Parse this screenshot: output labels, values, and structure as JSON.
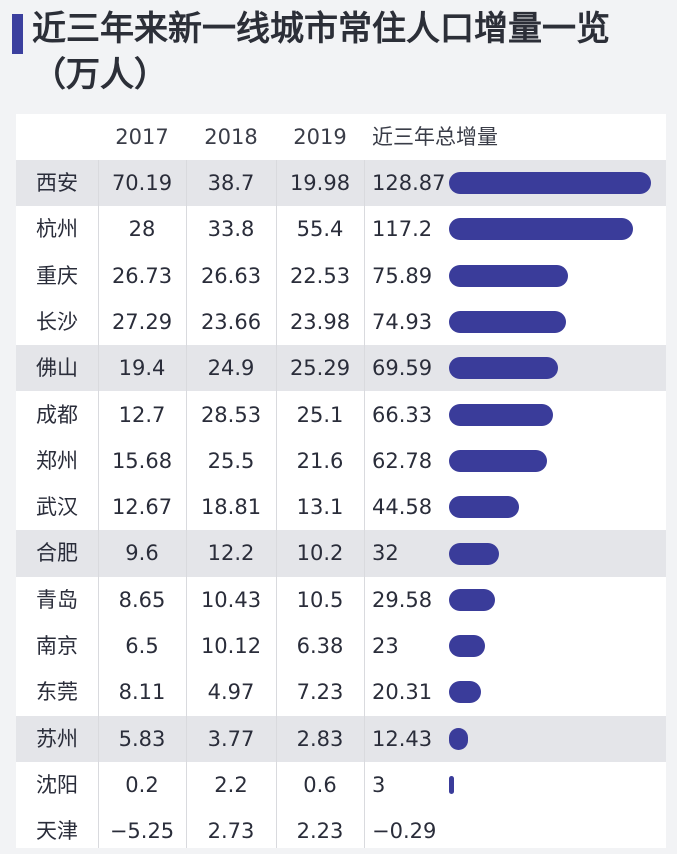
{
  "title": "近三年来新一线城市常住人口增量一览（万人）",
  "chart_data": {
    "type": "table",
    "columns": [
      "",
      "2017",
      "2018",
      "2019",
      "近三年总增量"
    ],
    "bar_color": "#3a3c9a",
    "band_color": "#e4e5e9",
    "rows": [
      {
        "city": "西安",
        "v2017": "70.19",
        "v2018": "38.7",
        "v2019": "19.98",
        "total": "128.87",
        "total_value": 128.87
      },
      {
        "city": "杭州",
        "v2017": "28",
        "v2018": "33.8",
        "v2019": "55.4",
        "total": "117.2",
        "total_value": 117.2
      },
      {
        "city": "重庆",
        "v2017": "26.73",
        "v2018": "26.63",
        "v2019": "22.53",
        "total": "75.89",
        "total_value": 75.89
      },
      {
        "city": "长沙",
        "v2017": "27.29",
        "v2018": "23.66",
        "v2019": "23.98",
        "total": "74.93",
        "total_value": 74.93
      },
      {
        "city": "佛山",
        "v2017": "19.4",
        "v2018": "24.9",
        "v2019": "25.29",
        "total": "69.59",
        "total_value": 69.59
      },
      {
        "city": "成都",
        "v2017": "12.7",
        "v2018": "28.53",
        "v2019": "25.1",
        "total": "66.33",
        "total_value": 66.33
      },
      {
        "city": "郑州",
        "v2017": "15.68",
        "v2018": "25.5",
        "v2019": "21.6",
        "total": "62.78",
        "total_value": 62.78
      },
      {
        "city": "武汉",
        "v2017": "12.67",
        "v2018": "18.81",
        "v2019": "13.1",
        "total": "44.58",
        "total_value": 44.58
      },
      {
        "city": "合肥",
        "v2017": "9.6",
        "v2018": "12.2",
        "v2019": "10.2",
        "total": "32",
        "total_value": 32
      },
      {
        "city": "青岛",
        "v2017": "8.65",
        "v2018": "10.43",
        "v2019": "10.5",
        "total": "29.58",
        "total_value": 29.58
      },
      {
        "city": "南京",
        "v2017": "6.5",
        "v2018": "10.12",
        "v2019": "6.38",
        "total": "23",
        "total_value": 23
      },
      {
        "city": "东莞",
        "v2017": "8.11",
        "v2018": "4.97",
        "v2019": "7.23",
        "total": "20.31",
        "total_value": 20.31
      },
      {
        "city": "苏州",
        "v2017": "5.83",
        "v2018": "3.77",
        "v2019": "2.83",
        "total": "12.43",
        "total_value": 12.43
      },
      {
        "city": "沈阳",
        "v2017": "0.2",
        "v2018": "2.2",
        "v2019": "0.6",
        "total": "3",
        "total_value": 3
      },
      {
        "city": "天津",
        "v2017": "−5.25",
        "v2018": "2.73",
        "v2019": "2.23",
        "total": "−0.29",
        "total_value": -0.29
      }
    ],
    "shaded_rows": [
      "西安",
      "佛山",
      "合肥",
      "苏州"
    ]
  }
}
